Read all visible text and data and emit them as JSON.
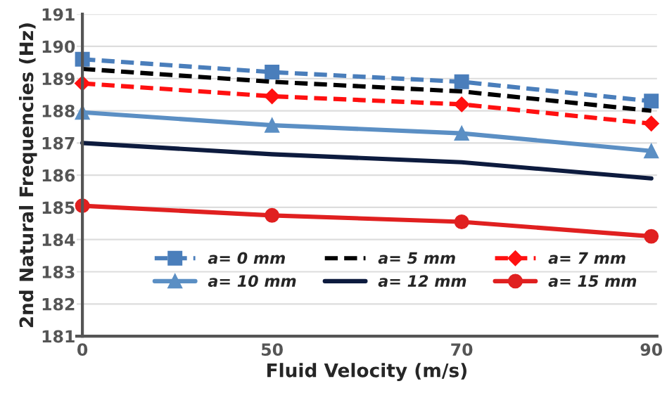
{
  "chart_data": {
    "type": "line",
    "xlabel": "Fluid Velocity (m/s)",
    "ylabel": "2nd Natural Frequencies (Hz)",
    "categories": [
      "0",
      "50",
      "70",
      "90"
    ],
    "series": [
      {
        "name": "a= 0 mm",
        "color": "#4a7ebb",
        "marker": "square",
        "line_style": "dashed",
        "values": [
          189.6,
          189.2,
          188.9,
          188.3
        ]
      },
      {
        "name": "a= 5 mm",
        "color": "#000000",
        "marker": "none",
        "line_style": "dashed",
        "values": [
          189.3,
          188.9,
          188.6,
          188.0
        ]
      },
      {
        "name": "a= 7 mm",
        "color": "#ff1010",
        "marker": "diamond",
        "line_style": "dashed",
        "values": [
          188.85,
          188.45,
          188.2,
          187.6
        ]
      },
      {
        "name": "a= 10 mm",
        "color": "#5b8fc4",
        "marker": "triangle",
        "line_style": "solid",
        "values": [
          187.95,
          187.55,
          187.3,
          186.75
        ]
      },
      {
        "name": "a= 12 mm",
        "color": "#0d1b3e",
        "marker": "none",
        "line_style": "solid",
        "values": [
          187.0,
          186.65,
          186.4,
          185.9
        ]
      },
      {
        "name": "a= 15 mm",
        "color": "#e02020",
        "marker": "circle",
        "line_style": "solid",
        "values": [
          185.05,
          184.75,
          184.55,
          184.1
        ]
      }
    ],
    "ylim": [
      181,
      191
    ],
    "yticks": [
      181,
      182,
      183,
      184,
      185,
      186,
      187,
      188,
      189,
      190,
      191
    ],
    "grid": "y",
    "legend": "bottom"
  }
}
